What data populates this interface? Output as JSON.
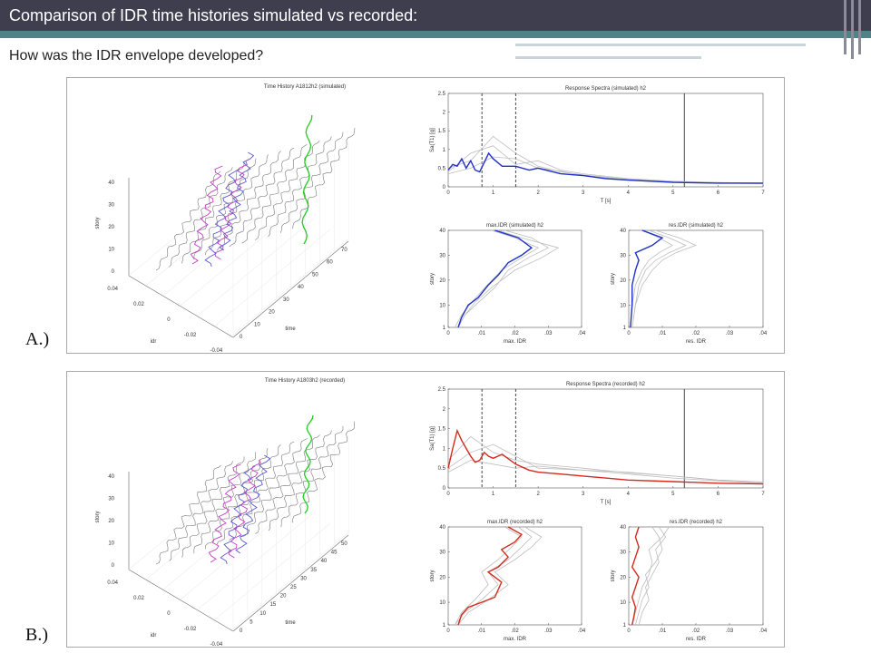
{
  "header": {
    "title": "Comparison of IDR time histories simulated vs recorded:"
  },
  "subtitle": "How was the IDR envelope developed?",
  "panels": [
    {
      "label": "A.)",
      "time_history": {
        "title": "Time History A1812h2 (simulated)",
        "zlabel": "story",
        "xlabel": "idr",
        "ylabel": "time",
        "story_ticks": [
          "0",
          "10",
          "20",
          "30",
          "40"
        ],
        "idr_ticks": [
          "0.04",
          "0.02",
          "0",
          "-0.02",
          "-0.04"
        ],
        "time_ticks": [
          "0",
          "10",
          "20",
          "30",
          "40",
          "50",
          "60",
          "70"
        ]
      }
    },
    {
      "label": "B.)",
      "time_history": {
        "title": "Time History A1803h2 (recorded)",
        "zlabel": "story",
        "xlabel": "idr",
        "ylabel": "time",
        "story_ticks": [
          "0",
          "10",
          "20",
          "30",
          "40"
        ],
        "idr_ticks": [
          "0.04",
          "0.02",
          "0",
          "-0.02",
          "-0.04"
        ],
        "time_ticks": [
          "0",
          "5",
          "10",
          "15",
          "20",
          "25",
          "30",
          "35",
          "40",
          "45",
          "50"
        ]
      }
    }
  ],
  "colors": {
    "header_bg": "#3f3e4f",
    "accent_bar": "#4d8488",
    "simulated": "#1f2fc8",
    "recorded": "#d42a1e",
    "history_magenta": "#c43fc4",
    "history_green": "#22cc22"
  },
  "chart_data": [
    {
      "type": "line",
      "title": "Response Spectra (simulated) h2",
      "xlabel": "T [s]",
      "ylabel": "Sa(T1) [g]",
      "xlim": [
        0,
        7
      ],
      "ylim": [
        0,
        2.5
      ],
      "x_ticks": [
        0,
        1,
        2,
        3,
        4,
        5,
        6,
        7
      ],
      "y_ticks": [
        0,
        0.5,
        1,
        1.5,
        2,
        2.5
      ],
      "vlines": [
        {
          "x": 0.75,
          "style": "dashed"
        },
        {
          "x": 1.5,
          "style": "dashed"
        },
        {
          "x": 5.25,
          "style": "solid"
        }
      ],
      "series": [
        {
          "role": "main",
          "x": [
            0,
            0.1,
            0.2,
            0.3,
            0.4,
            0.5,
            0.6,
            0.7,
            0.8,
            0.9,
            1.0,
            1.2,
            1.5,
            1.8,
            2.0,
            2.5,
            3.0,
            3.5,
            4.0,
            5.0,
            6.0,
            7.0
          ],
          "y": [
            0.45,
            0.6,
            0.55,
            0.75,
            0.5,
            0.7,
            0.45,
            0.4,
            0.65,
            0.9,
            0.75,
            0.55,
            0.55,
            0.45,
            0.5,
            0.35,
            0.3,
            0.22,
            0.18,
            0.12,
            0.1,
            0.1
          ]
        },
        {
          "role": "other",
          "x": [
            0,
            0.5,
            1.0,
            1.5,
            2.0,
            2.5,
            3.0,
            4.0,
            5.0,
            6.0,
            7.0
          ],
          "y": [
            0.4,
            0.9,
            1.1,
            0.6,
            0.7,
            0.45,
            0.35,
            0.22,
            0.15,
            0.12,
            0.1
          ]
        },
        {
          "role": "other",
          "x": [
            0,
            0.5,
            1.0,
            1.5,
            2.0,
            2.5,
            3.0,
            4.0,
            5.0,
            6.0,
            7.0
          ],
          "y": [
            0.5,
            0.7,
            1.35,
            0.9,
            0.55,
            0.4,
            0.32,
            0.2,
            0.14,
            0.11,
            0.09
          ]
        },
        {
          "role": "other",
          "x": [
            0,
            0.5,
            1.0,
            1.5,
            2.0,
            2.5,
            3.0,
            4.0,
            5.0,
            6.0,
            7.0
          ],
          "y": [
            0.35,
            0.5,
            0.8,
            0.75,
            0.5,
            0.42,
            0.3,
            0.18,
            0.13,
            0.1,
            0.08
          ]
        }
      ]
    },
    {
      "type": "line",
      "title": "max.IDR (simulated) h2",
      "xlabel": "max. IDR",
      "ylabel": "story",
      "xlim": [
        0,
        0.04
      ],
      "ylim": [
        1,
        40
      ],
      "x_tick_labels": [
        "0",
        ".01",
        ".02",
        ".03",
        ".04"
      ],
      "y_ticks": [
        1,
        10,
        20,
        30,
        40
      ],
      "series": [
        {
          "role": "main",
          "x": [
            0.003,
            0.004,
            0.006,
            0.009,
            0.012,
            0.015,
            0.018,
            0.022,
            0.025,
            0.021,
            0.014
          ],
          "y": [
            1,
            5,
            10,
            13,
            18,
            22,
            27,
            30,
            33,
            37,
            40
          ]
        },
        {
          "role": "other",
          "x": [
            0.003,
            0.005,
            0.008,
            0.013,
            0.02,
            0.028,
            0.033,
            0.022,
            0.015
          ],
          "y": [
            1,
            6,
            11,
            17,
            24,
            29,
            33,
            37,
            40
          ]
        },
        {
          "role": "other",
          "x": [
            0.002,
            0.004,
            0.007,
            0.011,
            0.016,
            0.022,
            0.027,
            0.02,
            0.013
          ],
          "y": [
            1,
            6,
            11,
            17,
            24,
            29,
            33,
            37,
            40
          ]
        },
        {
          "role": "other",
          "x": [
            0.003,
            0.005,
            0.009,
            0.014,
            0.018,
            0.024,
            0.03,
            0.025,
            0.017
          ],
          "y": [
            1,
            6,
            11,
            17,
            24,
            29,
            33,
            37,
            40
          ]
        }
      ]
    },
    {
      "type": "line",
      "title": "res.IDR (simulated) h2",
      "xlabel": "res. IDR",
      "ylabel": "story",
      "xlim": [
        0,
        0.04
      ],
      "ylim": [
        1,
        40
      ],
      "x_tick_labels": [
        "0",
        ".01",
        ".02",
        ".03",
        ".04"
      ],
      "y_ticks": [
        1,
        10,
        20,
        30,
        40
      ],
      "series": [
        {
          "role": "main",
          "x": [
            0.0005,
            0.001,
            0.001,
            0.002,
            0.003,
            0.002,
            0.007,
            0.01,
            0.004
          ],
          "y": [
            1,
            10,
            18,
            24,
            28,
            31,
            34,
            37,
            40
          ]
        },
        {
          "role": "other",
          "x": [
            0.001,
            0.002,
            0.003,
            0.005,
            0.008,
            0.012,
            0.017,
            0.012,
            0.006
          ],
          "y": [
            1,
            10,
            18,
            24,
            28,
            31,
            34,
            37,
            40
          ]
        },
        {
          "role": "other",
          "x": [
            0.0005,
            0.001,
            0.002,
            0.004,
            0.006,
            0.009,
            0.013,
            0.009,
            0.004
          ],
          "y": [
            1,
            10,
            18,
            24,
            28,
            31,
            34,
            37,
            40
          ]
        },
        {
          "role": "other",
          "x": [
            0.001,
            0.002,
            0.004,
            0.007,
            0.01,
            0.014,
            0.02,
            0.015,
            0.008
          ],
          "y": [
            1,
            10,
            18,
            24,
            28,
            31,
            34,
            37,
            40
          ]
        }
      ]
    },
    {
      "type": "line",
      "title": "Response Spectra (recorded) h2",
      "xlabel": "T [s]",
      "ylabel": "Sa(T1) [g]",
      "xlim": [
        0,
        7
      ],
      "ylim": [
        0,
        2.5
      ],
      "x_ticks": [
        0,
        1,
        2,
        3,
        4,
        5,
        6,
        7
      ],
      "y_ticks": [
        0,
        0.5,
        1,
        1.5,
        2,
        2.5
      ],
      "vlines": [
        {
          "x": 0.75,
          "style": "dashed"
        },
        {
          "x": 1.5,
          "style": "dashed"
        },
        {
          "x": 5.25,
          "style": "solid"
        }
      ],
      "series": [
        {
          "role": "main",
          "x": [
            0,
            0.1,
            0.2,
            0.3,
            0.4,
            0.5,
            0.6,
            0.7,
            0.8,
            0.9,
            1.0,
            1.2,
            1.5,
            1.8,
            2.0,
            2.5,
            3.0,
            3.5,
            4.0,
            5.0,
            6.0,
            7.0
          ],
          "y": [
            0.5,
            1.0,
            1.45,
            1.2,
            1.0,
            0.8,
            0.65,
            0.7,
            0.9,
            0.8,
            0.75,
            0.85,
            0.6,
            0.45,
            0.4,
            0.35,
            0.3,
            0.25,
            0.2,
            0.16,
            0.12,
            0.1
          ]
        },
        {
          "role": "other",
          "x": [
            0,
            0.5,
            1.0,
            1.5,
            2.0,
            2.5,
            3.0,
            4.0,
            5.0,
            6.0,
            7.0
          ],
          "y": [
            0.7,
            1.3,
            0.9,
            0.7,
            0.6,
            0.55,
            0.5,
            0.38,
            0.3,
            0.2,
            0.15
          ]
        },
        {
          "role": "other",
          "x": [
            0,
            0.5,
            1.0,
            1.5,
            2.0,
            2.5,
            3.0,
            4.0,
            5.0,
            6.0,
            7.0
          ],
          "y": [
            0.5,
            0.9,
            1.1,
            0.8,
            0.5,
            0.48,
            0.45,
            0.35,
            0.25,
            0.18,
            0.12
          ]
        },
        {
          "role": "other",
          "x": [
            0,
            0.5,
            1.0,
            1.5,
            2.0,
            2.5,
            3.0,
            4.0,
            5.0,
            6.0,
            7.0
          ],
          "y": [
            0.4,
            0.7,
            0.6,
            0.5,
            0.55,
            0.5,
            0.45,
            0.4,
            0.3,
            0.2,
            0.15
          ]
        }
      ]
    },
    {
      "type": "line",
      "title": "max.IDR (recorded) h2",
      "xlabel": "max. IDR",
      "ylabel": "story",
      "xlim": [
        0,
        0.04
      ],
      "ylim": [
        1,
        40
      ],
      "x_tick_labels": [
        "0",
        ".01",
        ".02",
        ".03",
        ".04"
      ],
      "y_ticks": [
        1,
        10,
        20,
        30,
        40
      ],
      "series": [
        {
          "role": "main",
          "x": [
            0.003,
            0.004,
            0.006,
            0.01,
            0.014,
            0.016,
            0.012,
            0.015,
            0.018,
            0.016,
            0.02,
            0.022,
            0.018
          ],
          "y": [
            1,
            5,
            8,
            10,
            12,
            18,
            22,
            24,
            28,
            31,
            34,
            37,
            40
          ]
        },
        {
          "role": "other",
          "x": [
            0.002,
            0.005,
            0.01,
            0.015,
            0.012,
            0.018,
            0.022,
            0.025,
            0.021
          ],
          "y": [
            1,
            6,
            11,
            17,
            22,
            27,
            32,
            36,
            40
          ]
        },
        {
          "role": "other",
          "x": [
            0.003,
            0.006,
            0.012,
            0.018,
            0.014,
            0.02,
            0.025,
            0.028,
            0.023
          ],
          "y": [
            1,
            6,
            11,
            17,
            22,
            27,
            32,
            36,
            40
          ]
        },
        {
          "role": "other",
          "x": [
            0.002,
            0.004,
            0.008,
            0.012,
            0.01,
            0.015,
            0.019,
            0.022,
            0.017
          ],
          "y": [
            1,
            6,
            11,
            17,
            22,
            27,
            32,
            36,
            40
          ]
        }
      ]
    },
    {
      "type": "line",
      "title": "res.IDR (recorded) h2",
      "xlabel": "res. IDR",
      "ylabel": "story",
      "xlim": [
        0,
        0.04
      ],
      "ylim": [
        1,
        40
      ],
      "x_tick_labels": [
        "0",
        ".01",
        ".02",
        ".03",
        ".04"
      ],
      "y_ticks": [
        1,
        10,
        20,
        30,
        40
      ],
      "series": [
        {
          "role": "main",
          "x": [
            0.001,
            0.0015,
            0.002,
            0.001,
            0.002,
            0.003,
            0.001,
            0.002,
            0.003,
            0.002,
            0.003
          ],
          "y": [
            1,
            4,
            8,
            12,
            16,
            20,
            24,
            28,
            32,
            36,
            40
          ]
        },
        {
          "role": "other",
          "x": [
            0.002,
            0.003,
            0.004,
            0.006,
            0.005,
            0.008,
            0.01,
            0.009,
            0.007
          ],
          "y": [
            1,
            6,
            11,
            16,
            21,
            26,
            31,
            36,
            40
          ]
        },
        {
          "role": "other",
          "x": [
            0.001,
            0.002,
            0.003,
            0.004,
            0.006,
            0.007,
            0.006,
            0.01,
            0.012
          ],
          "y": [
            1,
            6,
            11,
            16,
            21,
            26,
            31,
            36,
            40
          ]
        },
        {
          "role": "other",
          "x": [
            0.003,
            0.004,
            0.006,
            0.005,
            0.007,
            0.009,
            0.008,
            0.011,
            0.009
          ],
          "y": [
            1,
            6,
            11,
            16,
            21,
            26,
            31,
            36,
            40
          ]
        }
      ]
    }
  ]
}
